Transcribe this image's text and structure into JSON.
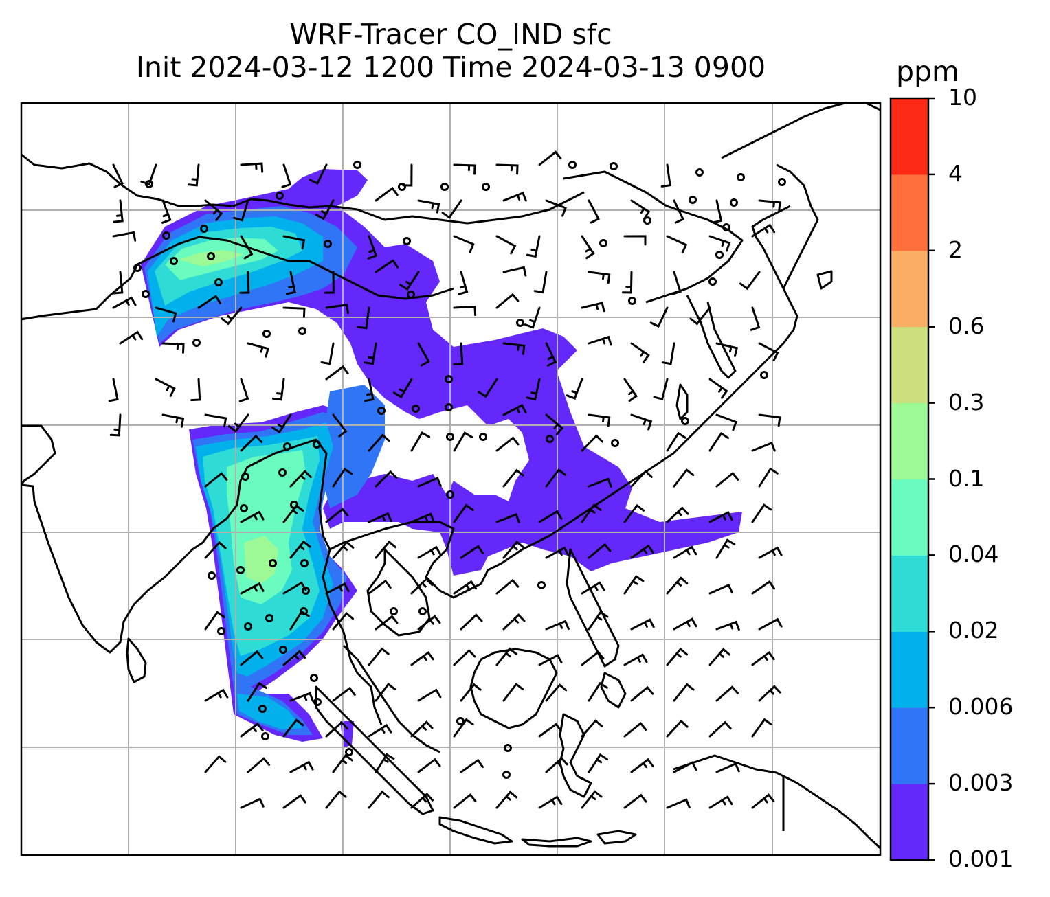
{
  "title": {
    "line1": "WRF-Tracer CO_IND sfc",
    "line2": "Init 2024-03-12 1200 Time 2024-03-13 0900"
  },
  "colorbar": {
    "unit": "ppm",
    "levels": [
      "0.001",
      "0.003",
      "0.006",
      "0.02",
      "0.04",
      "0.1",
      "0.3",
      "0.6",
      "2",
      "4",
      "10"
    ],
    "colors": [
      "#6428fb",
      "#3075f5",
      "#02b1ec",
      "#2edcd5",
      "#6afbbe",
      "#9cf996",
      "#cbdf7d",
      "#fbad63",
      "#ff6f3b",
      "#ff2a15"
    ]
  },
  "map": {
    "gridlines": true,
    "gridline_color": "#b0b0b0",
    "coastline_color": "#000000",
    "overlay": "wind barbs"
  }
}
